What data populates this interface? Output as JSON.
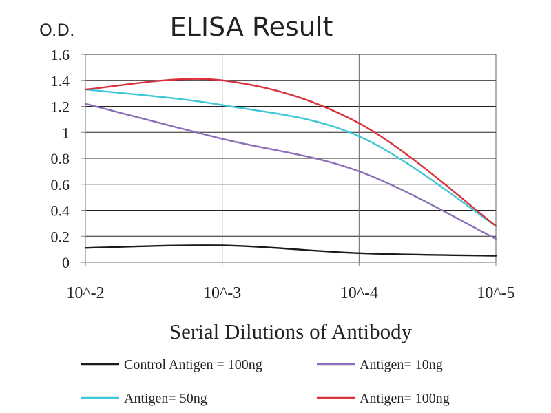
{
  "chart_data": {
    "type": "line",
    "title": "ELISA Result",
    "ylabel": "O.D.",
    "xlabel": "Serial Dilutions of Antibody",
    "categories": [
      "10^-2",
      "10^-3",
      "10^-4",
      "10^-5"
    ],
    "ylim": [
      0,
      1.6
    ],
    "yticks": [
      "0",
      "0.2",
      "0.4",
      "0.6",
      "0.8",
      "1",
      "1.2",
      "1.4",
      "1.6"
    ],
    "grid": true,
    "legend_position": "bottom",
    "series": [
      {
        "name": "Control Antigen = 100ng",
        "color": "#1a1a1a",
        "values": [
          0.11,
          0.13,
          0.07,
          0.05
        ]
      },
      {
        "name": "Antigen= 10ng",
        "color": "#8a6fb8",
        "values": [
          1.22,
          0.95,
          0.7,
          0.18
        ]
      },
      {
        "name": "Antigen= 50ng",
        "color": "#3cc6d6",
        "values": [
          1.33,
          1.21,
          0.97,
          0.28
        ]
      },
      {
        "name": "Antigen= 100ng",
        "color": "#d9323c",
        "values": [
          1.33,
          1.4,
          1.07,
          0.28
        ]
      }
    ]
  }
}
